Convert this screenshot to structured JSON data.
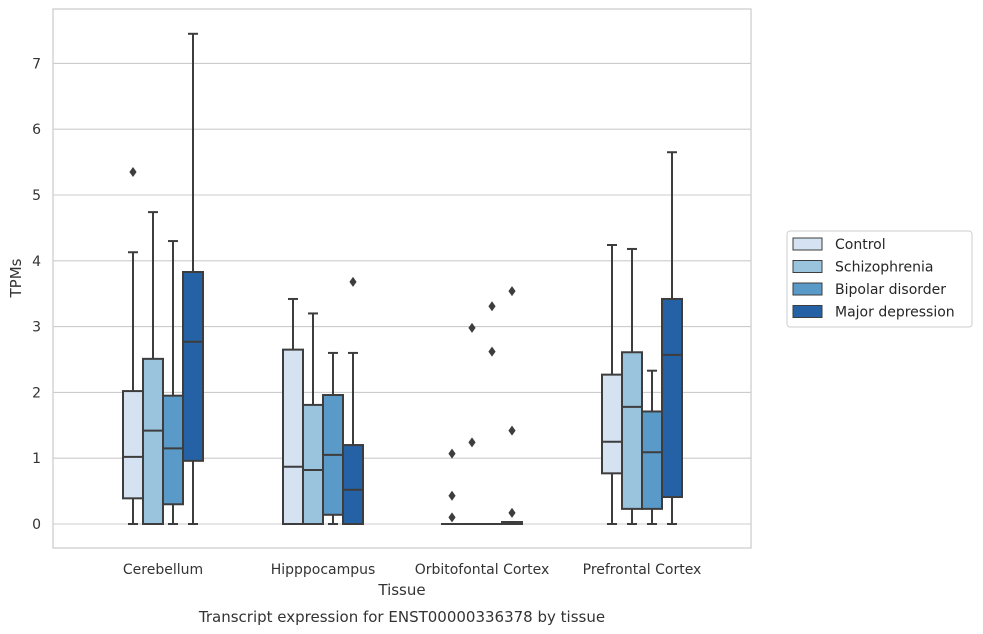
{
  "chart_data": {
    "type": "box",
    "title": "",
    "caption": "Transcript expression for ENST00000336378 by tissue",
    "xlabel": "Tissue",
    "ylabel": "TPMs",
    "ylim": [
      -0.35,
      7.8
    ],
    "yticks": [
      0,
      1,
      2,
      3,
      4,
      5,
      6,
      7
    ],
    "grid": "horizontal",
    "legend_position": "right",
    "categories": [
      "Cerebellum",
      "Hipppocampus",
      "Orbitofontal Cortex",
      "Prefrontal Cortex"
    ],
    "series": [
      {
        "name": "Control",
        "color": "#d4e2f1",
        "boxes": [
          {
            "whislo": 0,
            "q1": 0.39,
            "med": 1.02,
            "q3": 2.02,
            "whishi": 4.13,
            "fliers": [
              5.35
            ]
          },
          {
            "whislo": 0,
            "q1": 0,
            "med": 0.87,
            "q3": 2.65,
            "whishi": 3.42,
            "fliers": []
          },
          {
            "whislo": 0,
            "q1": 0,
            "med": 0,
            "q3": 0,
            "whishi": 0,
            "fliers": [
              0.1,
              0.43,
              1.07
            ]
          },
          {
            "whislo": 0,
            "q1": 0.77,
            "med": 1.25,
            "q3": 2.27,
            "whishi": 4.24,
            "fliers": []
          }
        ]
      },
      {
        "name": "Schizophrenia",
        "color": "#9ac3dd",
        "boxes": [
          {
            "whislo": 0,
            "q1": 0,
            "med": 1.42,
            "q3": 2.51,
            "whishi": 4.74,
            "fliers": []
          },
          {
            "whislo": 0,
            "q1": 0,
            "med": 0.82,
            "q3": 1.81,
            "whishi": 3.2,
            "fliers": []
          },
          {
            "whislo": 0,
            "q1": 0,
            "med": 0,
            "q3": 0,
            "whishi": 0,
            "fliers": [
              1.24,
              2.98
            ]
          },
          {
            "whislo": 0,
            "q1": 0.23,
            "med": 1.78,
            "q3": 2.61,
            "whishi": 4.18,
            "fliers": []
          }
        ]
      },
      {
        "name": "Bipolar disorder",
        "color": "#5a9ac8",
        "boxes": [
          {
            "whislo": 0,
            "q1": 0.3,
            "med": 1.15,
            "q3": 1.95,
            "whishi": 4.3,
            "fliers": []
          },
          {
            "whislo": 0,
            "q1": 0.14,
            "med": 1.05,
            "q3": 1.96,
            "whishi": 2.6,
            "fliers": []
          },
          {
            "whislo": 0,
            "q1": 0,
            "med": 0,
            "q3": 0,
            "whishi": 0,
            "fliers": [
              2.62,
              3.31
            ]
          },
          {
            "whislo": 0,
            "q1": 0.23,
            "med": 1.09,
            "q3": 1.71,
            "whishi": 2.33,
            "fliers": []
          }
        ]
      },
      {
        "name": "Major depression",
        "color": "#2462a5",
        "boxes": [
          {
            "whislo": 0,
            "q1": 0.96,
            "med": 2.77,
            "q3": 3.83,
            "whishi": 7.45,
            "fliers": []
          },
          {
            "whislo": 0,
            "q1": 0,
            "med": 0.52,
            "q3": 1.2,
            "whishi": 2.6,
            "fliers": [
              3.68
            ]
          },
          {
            "whislo": 0,
            "q1": 0,
            "med": 0,
            "q3": 0.03,
            "whishi": 0.03,
            "fliers": [
              0.17,
              1.42,
              3.54
            ]
          },
          {
            "whislo": 0,
            "q1": 0.41,
            "med": 2.57,
            "q3": 3.42,
            "whishi": 5.65,
            "fliers": []
          }
        ]
      }
    ]
  }
}
